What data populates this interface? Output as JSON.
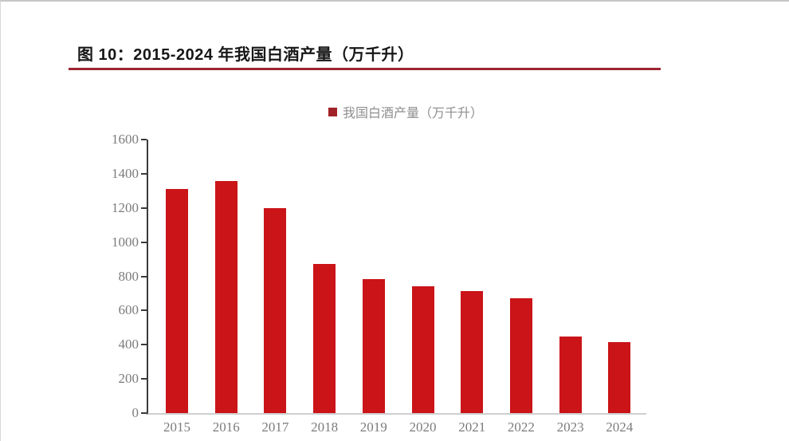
{
  "figure": {
    "title": "图 10：2015-2024 年我国白酒产量（万千升）",
    "legend_label": "我国白酒产量（万千升）"
  },
  "colors": {
    "bar": "#ca1418",
    "legend_square": "#a02226",
    "title_rule": "#9b2532",
    "y_axis": "#3a3a3a",
    "baseline": "#cfcfcf",
    "tick_label": "#7c7c7c",
    "legend_text": "#8f8f8f",
    "title_text": "#171717"
  },
  "chart_data": {
    "type": "bar",
    "title": "图 10：2015-2024 年我国白酒产量（万千升）",
    "legend": [
      "我国白酒产量（万千升）"
    ],
    "legend_position": "top-center",
    "categories": [
      "2015",
      "2016",
      "2017",
      "2018",
      "2019",
      "2020",
      "2021",
      "2022",
      "2023",
      "2024"
    ],
    "values": [
      1313,
      1358,
      1198,
      871,
      786,
      741,
      716,
      671,
      449,
      414
    ],
    "xlabel": "",
    "ylabel": "",
    "ylim": [
      0,
      1600
    ],
    "yticks": [
      0,
      200,
      400,
      600,
      800,
      1000,
      1200,
      1400,
      1600
    ],
    "grid": false,
    "bar_color": "#ca1418"
  }
}
